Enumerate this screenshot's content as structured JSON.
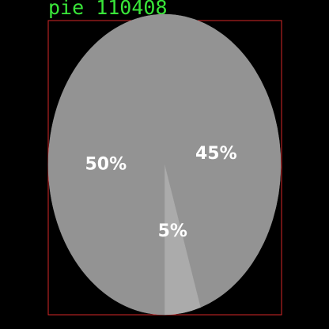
{
  "chart_data": {
    "type": "pie",
    "title": "pie 110408",
    "slices": [
      {
        "label": "45%",
        "value": 45,
        "color": "#939393"
      },
      {
        "label": "5%",
        "value": 5,
        "color": "#ababab"
      },
      {
        "label": "50%",
        "value": 50,
        "color": "#939393"
      }
    ],
    "start_angle_deg": 0,
    "direction": "clockwise",
    "frame_color": "#d62728",
    "title_color": "#39e639"
  }
}
